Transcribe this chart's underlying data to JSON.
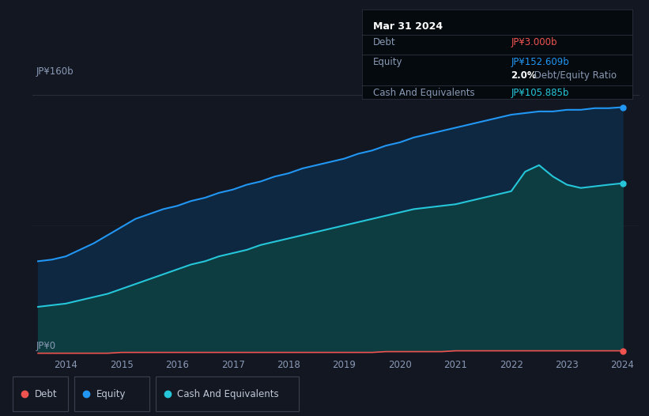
{
  "background_color": "#131722",
  "plot_bg_color": "#131722",
  "ylabel_top": "JP¥160b",
  "ylabel_bottom": "JP¥0",
  "x_ticks": [
    2014,
    2015,
    2016,
    2017,
    2018,
    2019,
    2020,
    2021,
    2022,
    2023,
    2024
  ],
  "equity_color": "#2196f3",
  "cash_color": "#26c6da",
  "debt_color": "#ef5350",
  "fill_equity_top": "#1a3a5c",
  "fill_equity_bottom": "#0d2035",
  "fill_cash_top": "#1a5c55",
  "fill_cash_bottom": "#0d3530",
  "tooltip_bg": "#050a0e",
  "tooltip_border": "#333333",
  "tooltip_title": "Mar 31 2024",
  "tooltip_debt_label": "Debt",
  "tooltip_debt_value": "JP¥3.000b",
  "tooltip_equity_label": "Equity",
  "tooltip_equity_value": "JP¥152.609b",
  "tooltip_ratio_bold": "2.0%",
  "tooltip_ratio_normal": " Debt/Equity Ratio",
  "tooltip_cash_label": "Cash And Equivalents",
  "tooltip_cash_value": "JP¥105.885b",
  "years": [
    2013.5,
    2013.75,
    2014.0,
    2014.25,
    2014.5,
    2014.75,
    2015.0,
    2015.25,
    2015.5,
    2015.75,
    2016.0,
    2016.25,
    2016.5,
    2016.75,
    2017.0,
    2017.25,
    2017.5,
    2017.75,
    2018.0,
    2018.25,
    2018.5,
    2018.75,
    2019.0,
    2019.25,
    2019.5,
    2019.75,
    2020.0,
    2020.25,
    2020.5,
    2020.75,
    2021.0,
    2021.25,
    2021.5,
    2021.75,
    2022.0,
    2022.25,
    2022.5,
    2022.75,
    2023.0,
    2023.25,
    2023.5,
    2023.75,
    2024.0
  ],
  "equity": [
    58,
    59,
    61,
    65,
    69,
    74,
    79,
    84,
    87,
    90,
    92,
    95,
    97,
    100,
    102,
    105,
    107,
    110,
    112,
    115,
    117,
    119,
    121,
    124,
    126,
    129,
    131,
    134,
    136,
    138,
    140,
    142,
    144,
    146,
    148,
    149,
    150,
    150,
    151,
    151,
    152,
    152,
    152.6
  ],
  "cash": [
    30,
    31,
    32,
    34,
    36,
    38,
    41,
    44,
    47,
    50,
    53,
    56,
    58,
    61,
    63,
    65,
    68,
    70,
    72,
    74,
    76,
    78,
    80,
    82,
    84,
    86,
    88,
    90,
    91,
    92,
    93,
    95,
    97,
    99,
    101,
    113,
    117,
    110,
    105,
    103,
    104,
    105,
    105.9
  ],
  "debt": [
    1.5,
    1.5,
    1.5,
    1.5,
    1.5,
    1.5,
    2,
    2,
    2,
    2,
    2,
    2,
    2,
    2,
    2,
    2,
    2,
    2,
    2,
    2,
    2,
    2,
    2,
    2,
    2,
    2.5,
    2.5,
    2.5,
    2.5,
    2.5,
    3,
    3,
    3,
    3,
    3,
    3,
    3,
    3,
    3,
    3,
    3,
    3,
    3
  ],
  "ylim": [
    0,
    175
  ],
  "xlim_min": 2013.4,
  "xlim_max": 2024.3,
  "legend_items": [
    {
      "label": "Debt",
      "color": "#ef5350"
    },
    {
      "label": "Equity",
      "color": "#2196f3"
    },
    {
      "label": "Cash And Equivalents",
      "color": "#26c6da"
    }
  ]
}
